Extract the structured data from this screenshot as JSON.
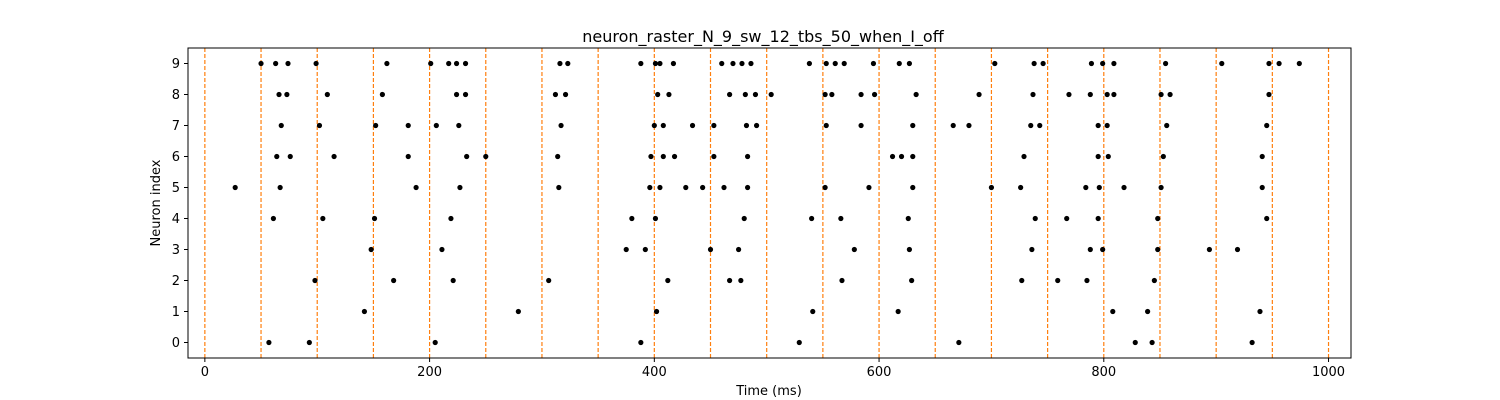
{
  "chart_data": {
    "type": "scatter",
    "title": "neuron_raster_N_9_sw_12_tbs_50_when_I_off",
    "xlabel": "Time (ms)",
    "ylabel": "Neuron index",
    "xlim": [
      -15,
      1020
    ],
    "ylim": [
      -0.5,
      9.5
    ],
    "xticks": [
      0,
      200,
      400,
      600,
      800,
      1000
    ],
    "yticks": [
      0,
      1,
      2,
      3,
      4,
      5,
      6,
      7,
      8,
      9
    ],
    "grid": false,
    "marker_color": "#000000",
    "vline_color": "#ff7f0e",
    "vlines": [
      0,
      50,
      100,
      150,
      200,
      250,
      300,
      350,
      400,
      450,
      500,
      550,
      600,
      650,
      700,
      750,
      800,
      850,
      900,
      950,
      1000
    ],
    "spikes": [
      {
        "neuron": 0,
        "times": [
          57,
          93,
          205,
          388,
          529,
          671,
          828,
          843,
          932
        ]
      },
      {
        "neuron": 1,
        "times": [
          142,
          279,
          402,
          541,
          617,
          808,
          839,
          939
        ]
      },
      {
        "neuron": 2,
        "times": [
          98,
          168,
          221,
          306,
          412,
          467,
          477,
          567,
          629,
          727,
          759,
          785,
          845
        ]
      },
      {
        "neuron": 3,
        "times": [
          148,
          211,
          375,
          392,
          450,
          475,
          578,
          627,
          736,
          788,
          799,
          848,
          894,
          919
        ]
      },
      {
        "neuron": 4,
        "times": [
          61,
          105,
          151,
          219,
          380,
          401,
          480,
          540,
          566,
          626,
          739,
          767,
          795,
          848,
          945
        ]
      },
      {
        "neuron": 5,
        "times": [
          27,
          67,
          188,
          227,
          315,
          396,
          405,
          428,
          443,
          462,
          483,
          552,
          591,
          630,
          700,
          726,
          784,
          796,
          818,
          851,
          941
        ]
      },
      {
        "neuron": 6,
        "times": [
          64,
          76,
          115,
          181,
          233,
          250,
          314,
          397,
          408,
          418,
          453,
          483,
          612,
          620,
          630,
          729,
          795,
          804,
          853,
          941
        ]
      },
      {
        "neuron": 7,
        "times": [
          68,
          102,
          152,
          181,
          206,
          226,
          317,
          400,
          408,
          434,
          453,
          482,
          491,
          553,
          584,
          630,
          666,
          680,
          735,
          743,
          795,
          803,
          856,
          945
        ]
      },
      {
        "neuron": 8,
        "times": [
          66,
          73,
          109,
          158,
          224,
          232,
          312,
          321,
          403,
          413,
          467,
          481,
          490,
          504,
          552,
          558,
          584,
          596,
          633,
          689,
          737,
          769,
          788,
          803,
          809,
          851,
          859,
          947
        ]
      },
      {
        "neuron": 9,
        "times": [
          50,
          63,
          74,
          99,
          162,
          201,
          217,
          224,
          232,
          316,
          323,
          388,
          401,
          405,
          417,
          460,
          470,
          478,
          486,
          538,
          553,
          561,
          569,
          595,
          618,
          627,
          703,
          738,
          746,
          789,
          799,
          809,
          855,
          905,
          947,
          956,
          974
        ]
      }
    ]
  }
}
